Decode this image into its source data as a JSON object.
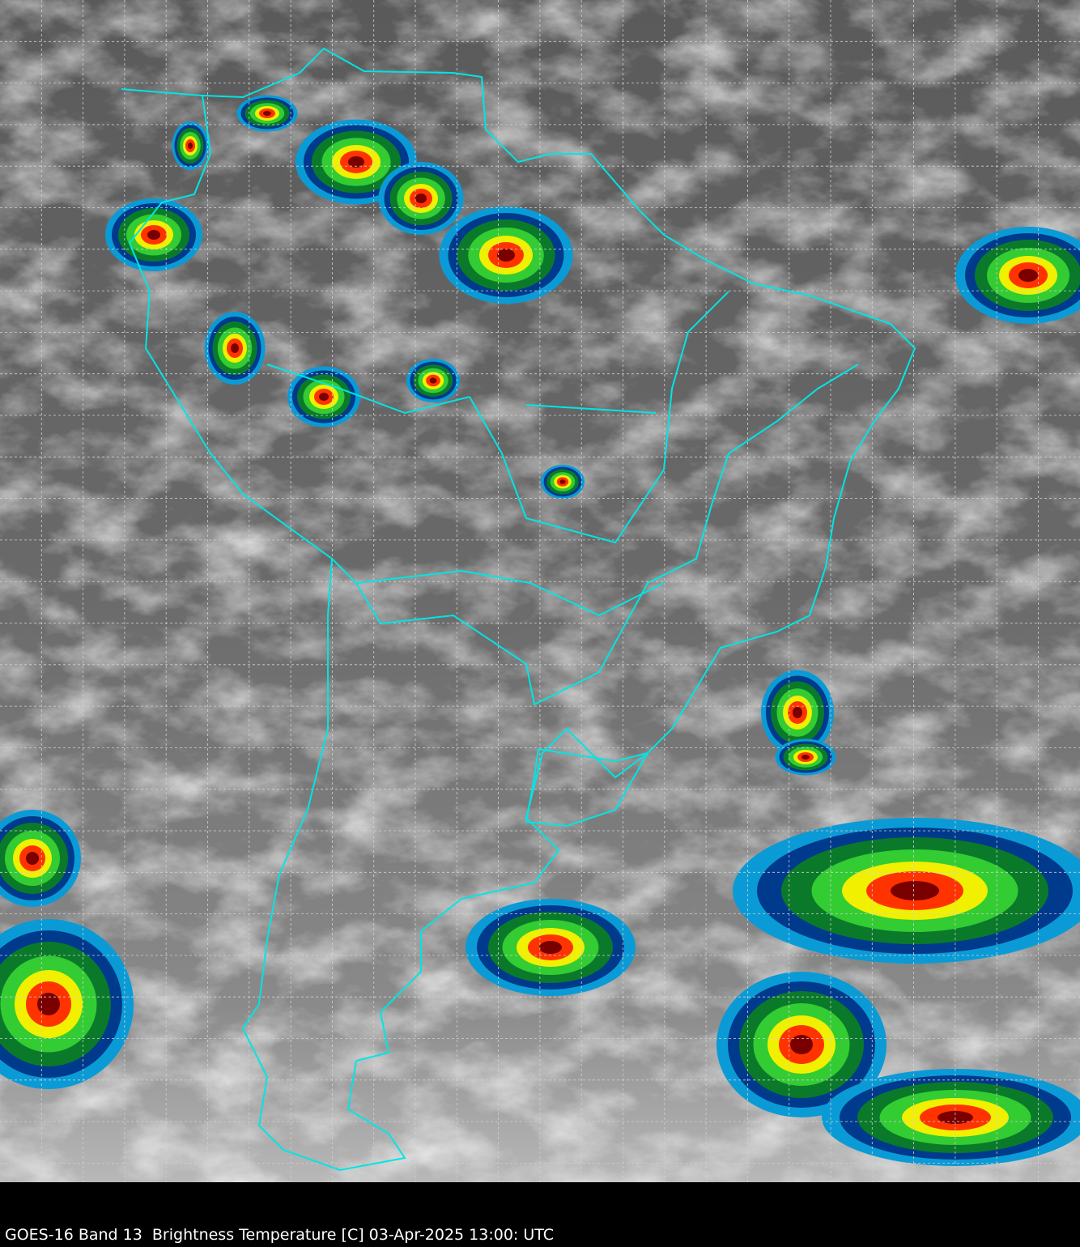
{
  "caption": "GOES-16 Band 13  Brightness Temperature [C] 03-Apr-2025 13:00: UTC",
  "colors": {
    "boundaries": "#00e5e5",
    "grid": "#d0d0d0",
    "background": "#000000",
    "cold_cloud_scale": [
      "#ffffff",
      "#0a9bd6",
      "#003a8c",
      "#0a7a2a",
      "#33cc33",
      "#f0f000",
      "#ff3300",
      "#7a0000"
    ]
  },
  "icons": {
    "map": "south-america-satellite-ir"
  }
}
